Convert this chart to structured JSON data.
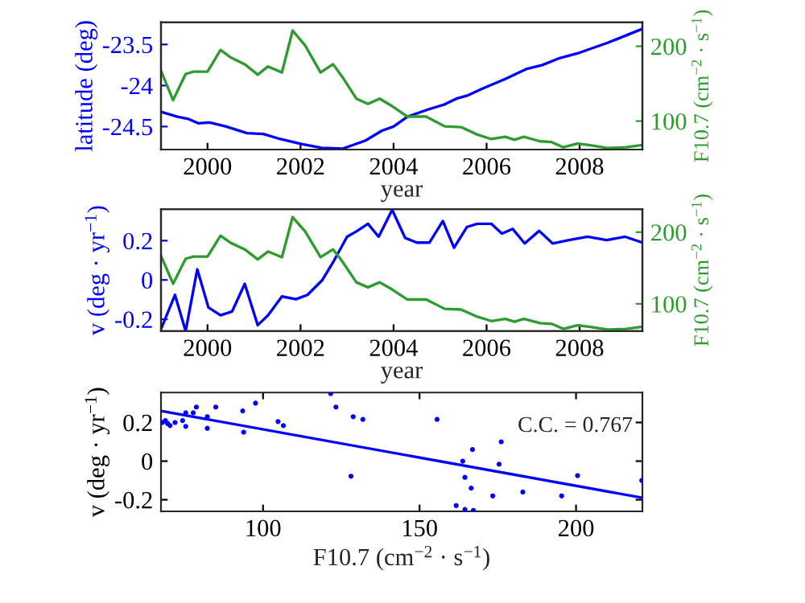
{
  "chart_data": [
    {
      "type": "line",
      "xlabel": "year",
      "ylabel": "latitude (deg)",
      "y2label": "F10.7 (cm$^{−2}$ · s$^{−1}$)",
      "xlim": [
        1999,
        2009.35
      ],
      "xticks": [
        2000,
        2002,
        2004,
        2006,
        2008
      ],
      "ylim": [
        -24.78,
        -23.23
      ],
      "yticks": [
        -24.5,
        -24,
        -23.5
      ],
      "y2lim": [
        62,
        232
      ],
      "y2ticks": [
        100,
        200
      ],
      "series": [
        {
          "color": "#0000ff",
          "axis": "y",
          "x": [
            1999.0,
            1999.35,
            1999.6,
            1999.8,
            2000.05,
            2000.4,
            2000.85,
            2001.2,
            2001.55,
            2002.0,
            2002.45,
            2002.9,
            2003.4,
            2003.75,
            2004.0,
            2004.3,
            2004.75,
            2005.1,
            2005.35,
            2005.6,
            2005.9,
            2006.4,
            2006.85,
            2007.2,
            2007.55,
            2008.0,
            2008.6,
            2009.35
          ],
          "values": [
            -24.32,
            -24.38,
            -24.41,
            -24.46,
            -24.45,
            -24.5,
            -24.58,
            -24.59,
            -24.65,
            -24.71,
            -24.76,
            -24.77,
            -24.67,
            -24.55,
            -24.5,
            -24.38,
            -24.29,
            -24.23,
            -24.16,
            -24.12,
            -24.04,
            -23.92,
            -23.8,
            -23.75,
            -23.67,
            -23.6,
            -23.48,
            -23.31
          ]
        },
        {
          "color": "#2e9b2e",
          "axis": "y2",
          "x": [
            1999.0,
            1999.26,
            1999.53,
            1999.7,
            2000.0,
            2000.28,
            2000.5,
            2000.8,
            2001.08,
            2001.3,
            2001.6,
            2001.83,
            2002.1,
            2002.43,
            2002.7,
            2002.9,
            2003.2,
            2003.45,
            2003.7,
            2003.97,
            2004.3,
            2004.7,
            2005.1,
            2005.45,
            2005.8,
            2006.1,
            2006.4,
            2006.6,
            2006.8,
            2007.15,
            2007.4,
            2007.65,
            2007.95,
            2008.2,
            2008.6,
            2009.0,
            2009.35
          ],
          "values": [
            167,
            128,
            163,
            166,
            166,
            195,
            185,
            176,
            162,
            173,
            165,
            221,
            201,
            165,
            176,
            159,
            130,
            123,
            130,
            120,
            106,
            106,
            93,
            92,
            82,
            76,
            79,
            75,
            79,
            73,
            72,
            65,
            70,
            68,
            64,
            65,
            68
          ]
        }
      ]
    },
    {
      "type": "line",
      "xlabel": "year",
      "ylabel": "v (deg · yr$^{−1}$)",
      "y2label": "F10.7 (cm$^{−2}$ · s$^{−1}$)",
      "xlim": [
        1999,
        2009.35
      ],
      "xticks": [
        2000,
        2002,
        2004,
        2006,
        2008
      ],
      "ylim": [
        -0.26,
        0.36
      ],
      "yticks": [
        -0.2,
        0,
        0.2
      ],
      "y2lim": [
        62,
        232
      ],
      "y2ticks": [
        100,
        200
      ],
      "series": [
        {
          "color": "#0000ff",
          "axis": "y",
          "x": [
            1999.0,
            1999.3,
            1999.53,
            1999.78,
            2000.02,
            2000.28,
            2000.53,
            2000.8,
            2001.08,
            2001.3,
            2001.6,
            2001.9,
            2002.15,
            2002.47,
            2002.7,
            2003.0,
            2003.2,
            2003.45,
            2003.68,
            2003.97,
            2004.25,
            2004.5,
            2004.77,
            2005.06,
            2005.3,
            2005.58,
            2005.8,
            2006.1,
            2006.33,
            2006.56,
            2006.82,
            2007.13,
            2007.42,
            2007.77,
            2008.17,
            2008.58,
            2008.98,
            2009.35
          ],
          "values": [
            -0.25,
            -0.076,
            -0.26,
            0.054,
            -0.14,
            -0.18,
            -0.16,
            -0.02,
            -0.23,
            -0.18,
            -0.084,
            -0.098,
            -0.076,
            0.0,
            0.09,
            0.22,
            0.247,
            0.286,
            0.22,
            0.357,
            0.214,
            0.19,
            0.19,
            0.3,
            0.164,
            0.27,
            0.286,
            0.286,
            0.236,
            0.26,
            0.186,
            0.25,
            0.186,
            0.203,
            0.22,
            0.203,
            0.22,
            0.19
          ]
        },
        {
          "color": "#2e9b2e",
          "axis": "y2",
          "x": [
            1999.0,
            1999.26,
            1999.53,
            1999.7,
            2000.0,
            2000.28,
            2000.5,
            2000.8,
            2001.08,
            2001.3,
            2001.6,
            2001.83,
            2002.1,
            2002.43,
            2002.7,
            2002.9,
            2003.2,
            2003.45,
            2003.7,
            2003.97,
            2004.3,
            2004.7,
            2005.1,
            2005.45,
            2005.8,
            2006.1,
            2006.4,
            2006.6,
            2006.8,
            2007.15,
            2007.4,
            2007.65,
            2007.95,
            2008.2,
            2008.6,
            2009.0,
            2009.35
          ],
          "values": [
            167,
            128,
            163,
            166,
            166,
            195,
            185,
            176,
            162,
            173,
            165,
            221,
            201,
            165,
            176,
            159,
            130,
            123,
            130,
            120,
            106,
            106,
            93,
            92,
            82,
            76,
            79,
            75,
            79,
            73,
            72,
            65,
            70,
            68,
            64,
            65,
            68
          ]
        }
      ]
    },
    {
      "type": "scatter",
      "xlabel": "F10.7 (cm$^{−2}$ · s$^{−1}$)",
      "ylabel": "v (deg · yr$^{−1}$)",
      "xlim": [
        67.4,
        221.2
      ],
      "xticks": [
        100,
        150,
        200
      ],
      "ylim": [
        -0.26,
        0.355
      ],
      "yticks": [
        -0.2,
        0,
        0.2
      ],
      "annotations": [
        "C.C. = 0.767"
      ],
      "series": [
        {
          "type": "scatter",
          "marker": "circle",
          "color": "#0000ff",
          "x": [
            67.8,
            68.8,
            69.5,
            70.3,
            71.9,
            74.3,
            75.3,
            75.3,
            77.7,
            78.7,
            82.2,
            82.2,
            84.9,
            93.5,
            93.8,
            97.6,
            104.8,
            106.5,
            121.6,
            123.3,
            128.8,
            128.1,
            131.9,
            155.6,
            163.8,
            164.5,
            166.9,
            166.5,
            164.5,
            167.2,
            161.7,
            173.4,
            175.4,
            176.1,
            183,
            195.4,
            200.5,
            221.0
          ],
          "values": [
            0.2,
            0.21,
            0.195,
            0.184,
            0.2,
            0.21,
            0.25,
            0.18,
            0.25,
            0.28,
            0.23,
            0.17,
            0.28,
            0.26,
            0.15,
            0.3,
            0.205,
            0.184,
            0.35,
            0.28,
            0.23,
            -0.078,
            0.216,
            0.216,
            0.0,
            -0.084,
            0.06,
            -0.14,
            -0.25,
            -0.255,
            -0.23,
            -0.18,
            -0.016,
            0.1,
            -0.16,
            -0.18,
            -0.075,
            -0.1
          ]
        },
        {
          "type": "line",
          "color": "#0000ff",
          "x": [
            67.4,
            221.2
          ],
          "values": [
            0.26,
            -0.19
          ]
        }
      ]
    }
  ]
}
